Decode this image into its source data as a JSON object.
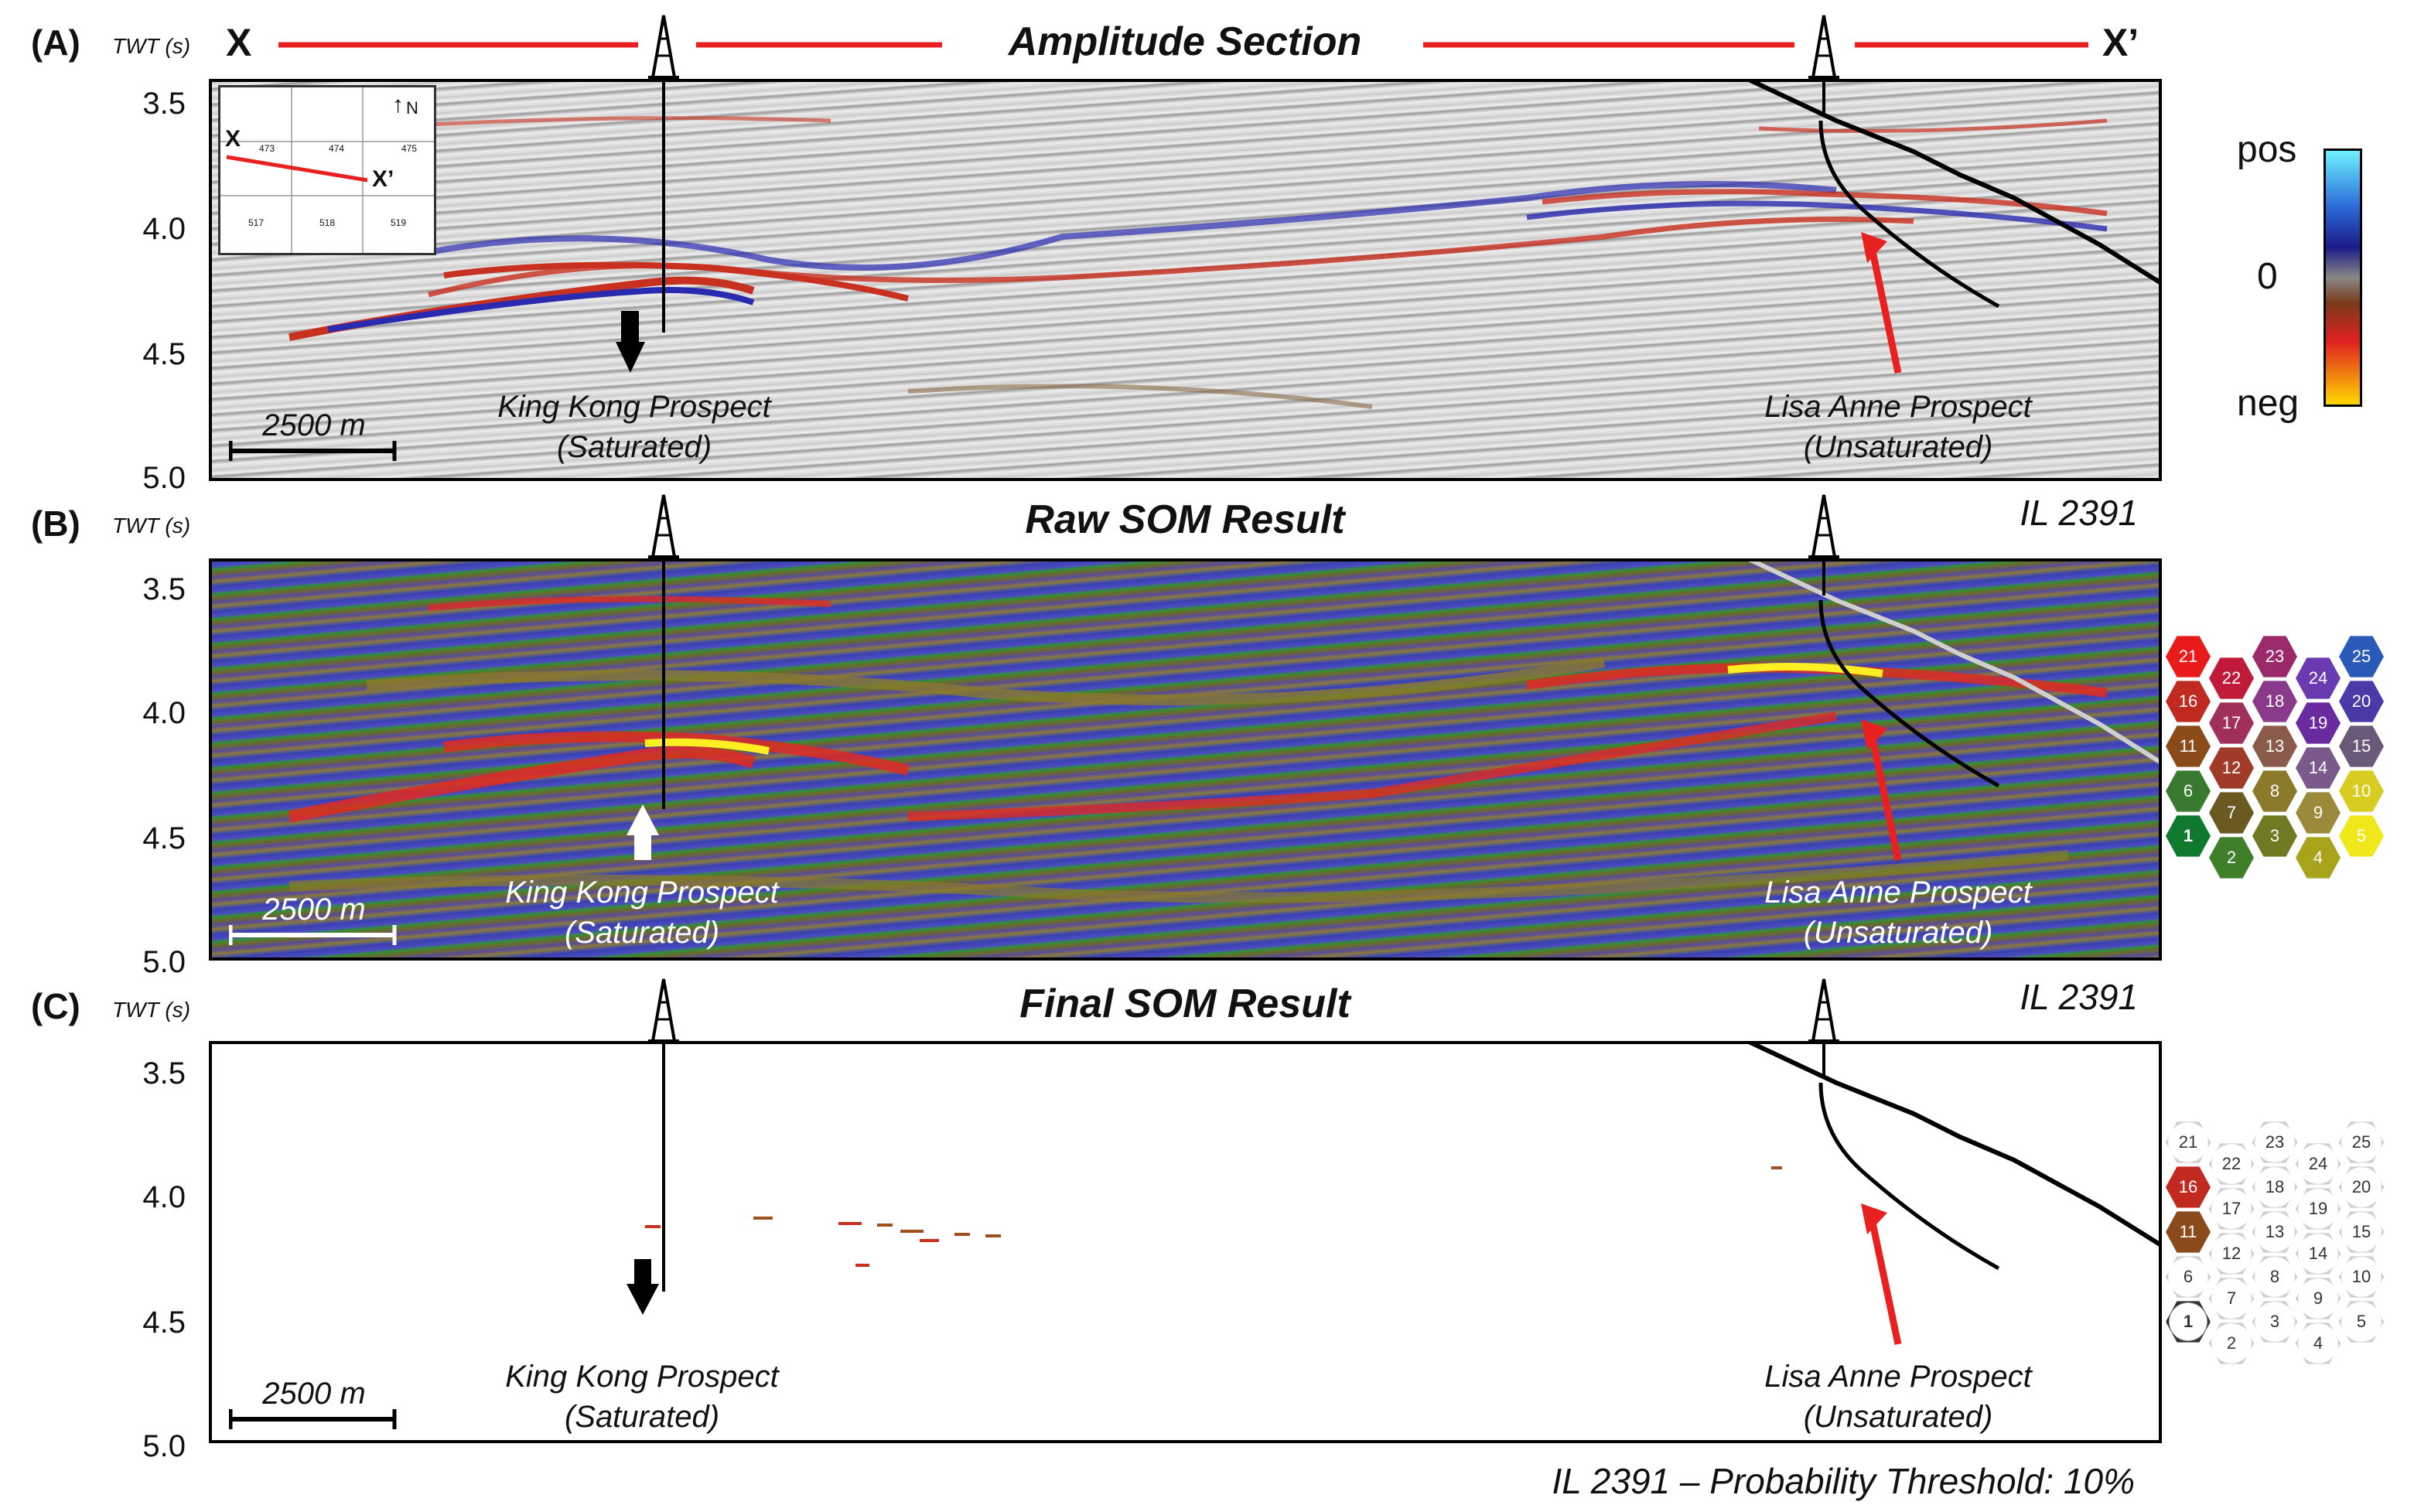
{
  "panels": [
    {
      "label": "(A)",
      "twt_label": "TWT (s)",
      "title": "Amplitude Section",
      "x_start": "X",
      "x_end": "X’",
      "il": "",
      "ticks": [
        "3.5",
        "4.0",
        "4.5",
        "5.0"
      ],
      "scale_bar": "2500 m",
      "king_kong": [
        "King Kong Prospect",
        "(Saturated)"
      ],
      "lisa_anne": [
        "Lisa Anne Prospect",
        "(Unsaturated)"
      ],
      "inset": {
        "x": "X",
        "x_prime": "X’",
        "north": "N",
        "well_numbers": [
          "473",
          "474",
          "475"
        ],
        "block_numbers": [
          "517",
          "518",
          "519"
        ]
      }
    },
    {
      "label": "(B)",
      "twt_label": "TWT (s)",
      "title": "Raw SOM Result",
      "il": "IL 2391",
      "ticks": [
        "3.5",
        "4.0",
        "4.5",
        "5.0"
      ],
      "scale_bar": "2500 m",
      "king_kong": [
        "King Kong Prospect",
        "(Saturated)"
      ],
      "lisa_anne": [
        "Lisa Anne Prospect",
        "(Unsaturated)"
      ]
    },
    {
      "label": "(C)",
      "twt_label": "TWT (s)",
      "title": "Final SOM Result",
      "il": "IL 2391",
      "ticks": [
        "3.5",
        "4.0",
        "4.5",
        "5.0"
      ],
      "scale_bar": "2500 m",
      "king_kong": [
        "King Kong Prospect",
        "(Saturated)"
      ],
      "lisa_anne": [
        "Lisa Anne Prospect",
        "(Unsaturated)"
      ]
    }
  ],
  "amplitude_colorbar": {
    "top": "pos",
    "middle": "0",
    "bottom": "neg",
    "colors": [
      "#6ef2ff",
      "#2b6bd9",
      "#1b1b8a",
      "#888888",
      "#7a3a1a",
      "#e02020",
      "#ffd800"
    ]
  },
  "som_colors": {
    "1": "#0f7a2e",
    "2": "#3f7f2a",
    "3": "#6f7a22",
    "4": "#a7a31a",
    "5": "#f0e81a",
    "6": "#3a7a30",
    "7": "#6a5a22",
    "8": "#8a7a2a",
    "9": "#9a8a3a",
    "10": "#d8cc22",
    "11": "#8a4a1a",
    "12": "#a23a2a",
    "13": "#8a5a4a",
    "14": "#7a5a8a",
    "15": "#6a5a7a",
    "16": "#c02a20",
    "17": "#a0305a",
    "18": "#8a3a8a",
    "19": "#6a2aa0",
    "20": "#4a3aa8",
    "21": "#e81a1a",
    "22": "#c01a3a",
    "23": "#9a2a6a",
    "24": "#6a3ab0",
    "25": "#2a5ab8"
  },
  "som_grid": [
    [
      "21",
      "22",
      "23",
      "24",
      "25"
    ],
    [
      "16",
      "17",
      "18",
      "19",
      "20"
    ],
    [
      "11",
      "12",
      "13",
      "14",
      "15"
    ],
    [
      "6",
      "7",
      "8",
      "9",
      "10"
    ],
    [
      "1",
      "2",
      "3",
      "4",
      "5"
    ]
  ],
  "final_highlighted_nodes": [
    "16",
    "11"
  ],
  "footer": "IL 2391 – Probability Threshold: 10%"
}
